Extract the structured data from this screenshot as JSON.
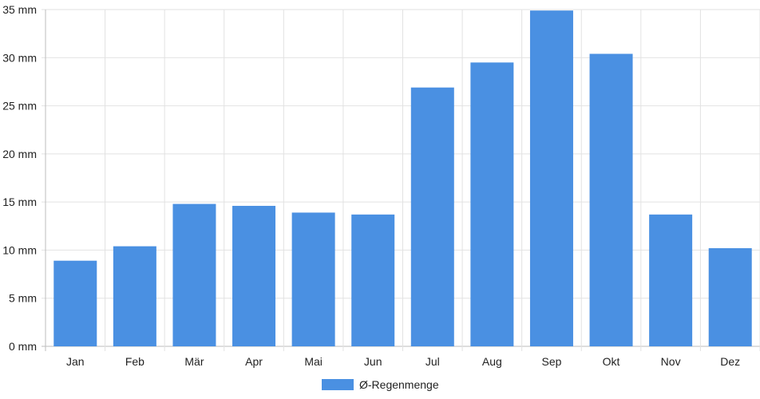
{
  "chart_data": {
    "type": "bar",
    "categories": [
      "Jan",
      "Feb",
      "Mär",
      "Apr",
      "Mai",
      "Jun",
      "Jul",
      "Aug",
      "Sep",
      "Okt",
      "Nov",
      "Dez"
    ],
    "series": [
      {
        "name": "Ø-Regenmenge",
        "values": [
          8.9,
          10.4,
          14.8,
          14.6,
          13.9,
          13.7,
          26.9,
          29.5,
          34.9,
          30.4,
          13.7,
          10.2
        ],
        "color": "#4a90e2"
      }
    ],
    "y_ticks": [
      "0 mm",
      "5 mm",
      "10 mm",
      "15 mm",
      "20 mm",
      "25 mm",
      "30 mm",
      "35 mm"
    ],
    "ylim": [
      0,
      35
    ],
    "y_step": 5,
    "grid": true,
    "legend_position": "bottom-center"
  }
}
